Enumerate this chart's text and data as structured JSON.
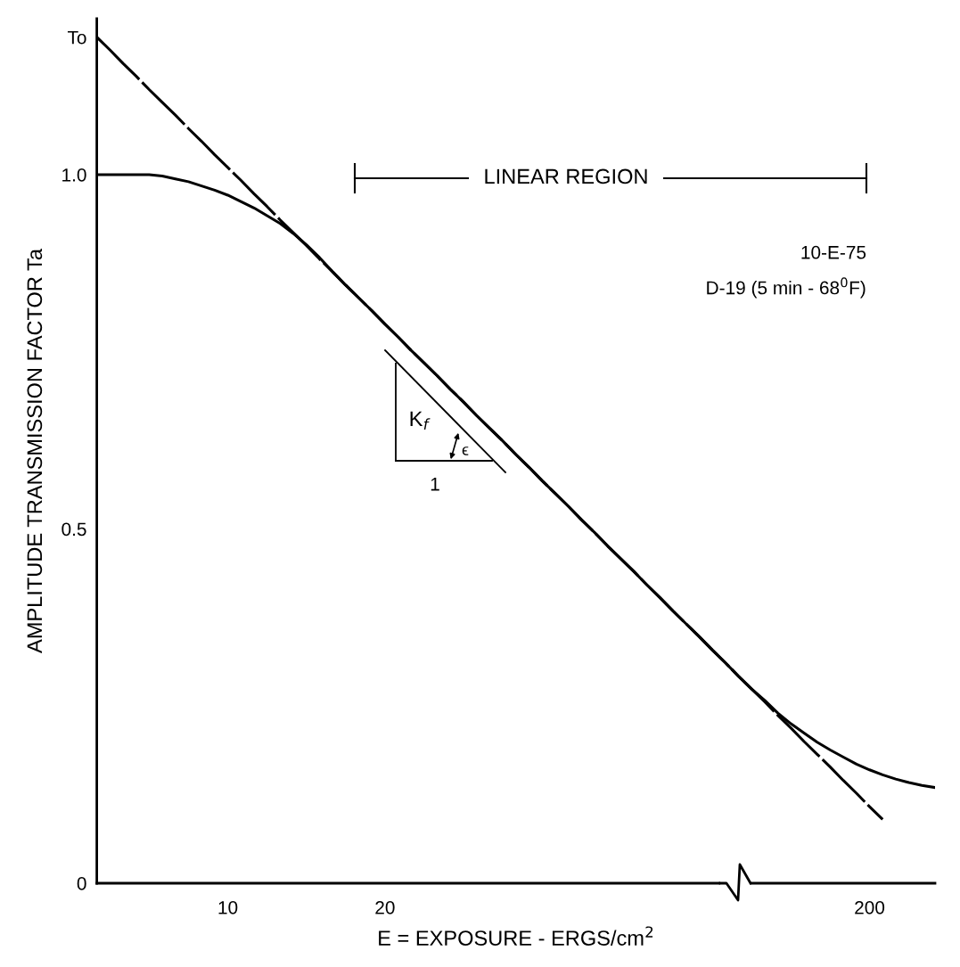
{
  "chart_data": {
    "type": "line",
    "xlabel": "E = EXPOSURE - ERGS/cm$^{2}$",
    "ylabel": "AMPLITUDE TRANSMISSION FACTOR Ta",
    "categories": [
      null,
      null,
      null,
      null,
      null,
      null,
      null,
      null,
      null,
      null,
      "10",
      null,
      null,
      null,
      null,
      null,
      null,
      null,
      null,
      null,
      null,
      null,
      "20",
      null,
      null,
      null,
      null,
      null,
      null,
      null,
      null,
      null,
      null,
      null,
      null,
      null,
      null,
      null,
      null,
      null,
      null,
      null,
      null,
      null,
      null,
      null,
      null,
      null,
      null,
      null,
      null,
      null,
      null,
      null,
      null,
      null,
      null,
      null,
      null,
      "200",
      null,
      null,
      null,
      null,
      null
    ],
    "series": [
      {
        "color": "#000000",
        "line_style": "solid",
        "values": [
          1.0,
          1.0,
          1.0,
          1.0,
          1.0,
          0.998,
          0.994,
          0.99,
          0.984,
          0.978,
          0.971,
          0.962,
          0.953,
          0.942,
          0.931,
          0.917,
          0.901,
          0.883,
          0.863,
          0.844,
          0.826,
          0.808,
          0.789,
          0.771,
          0.752,
          0.734,
          0.716,
          0.697,
          0.679,
          0.66,
          0.642,
          0.624,
          0.605,
          0.587,
          0.568,
          0.55,
          0.532,
          0.513,
          0.495,
          0.476,
          0.458,
          0.44,
          0.421,
          0.403,
          0.384,
          0.366,
          0.348,
          0.329,
          0.311,
          0.292,
          0.274,
          0.258,
          0.24,
          0.225,
          0.212,
          0.199,
          0.188,
          0.178,
          0.168,
          0.16,
          0.153,
          0.147,
          0.142,
          0.138,
          0.135
        ]
      },
      {
        "color": "#000000",
        "line_style": "dashed",
        "values": [
          1.194,
          1.176,
          1.157,
          1.139,
          1.12,
          1.102,
          1.084,
          1.065,
          1.047,
          1.028,
          1.01,
          0.992,
          0.973,
          0.955,
          0.936,
          0.918,
          0.9,
          0.881,
          0.863,
          0.844,
          0.826,
          0.808,
          0.789,
          0.771,
          0.752,
          0.734,
          0.716,
          0.697,
          0.679,
          0.66,
          0.642,
          0.624,
          0.605,
          0.587,
          0.568,
          0.55,
          0.532,
          0.513,
          0.495,
          0.476,
          0.458,
          0.44,
          0.421,
          0.403,
          0.384,
          0.366,
          0.348,
          0.329,
          0.311,
          0.292,
          0.274,
          0.256,
          0.237,
          0.219,
          0.2,
          0.182,
          0.164,
          0.145,
          0.127,
          0.108,
          0.09,
          null,
          null,
          null,
          null
        ]
      }
    ],
    "ylim": [
      0,
      1.22
    ],
    "yticks": [
      0,
      0.5,
      {
        "value": 1,
        "label": "1.0"
      },
      {
        "value": 1.194,
        "label": "To"
      }
    ],
    "annotations": [
      "LINEAR REGION",
      "10-E-75",
      "D-19 (5 min - 68$^{0}$F)",
      "K$_{f}$",
      "1",
      "ϵ"
    ]
  }
}
